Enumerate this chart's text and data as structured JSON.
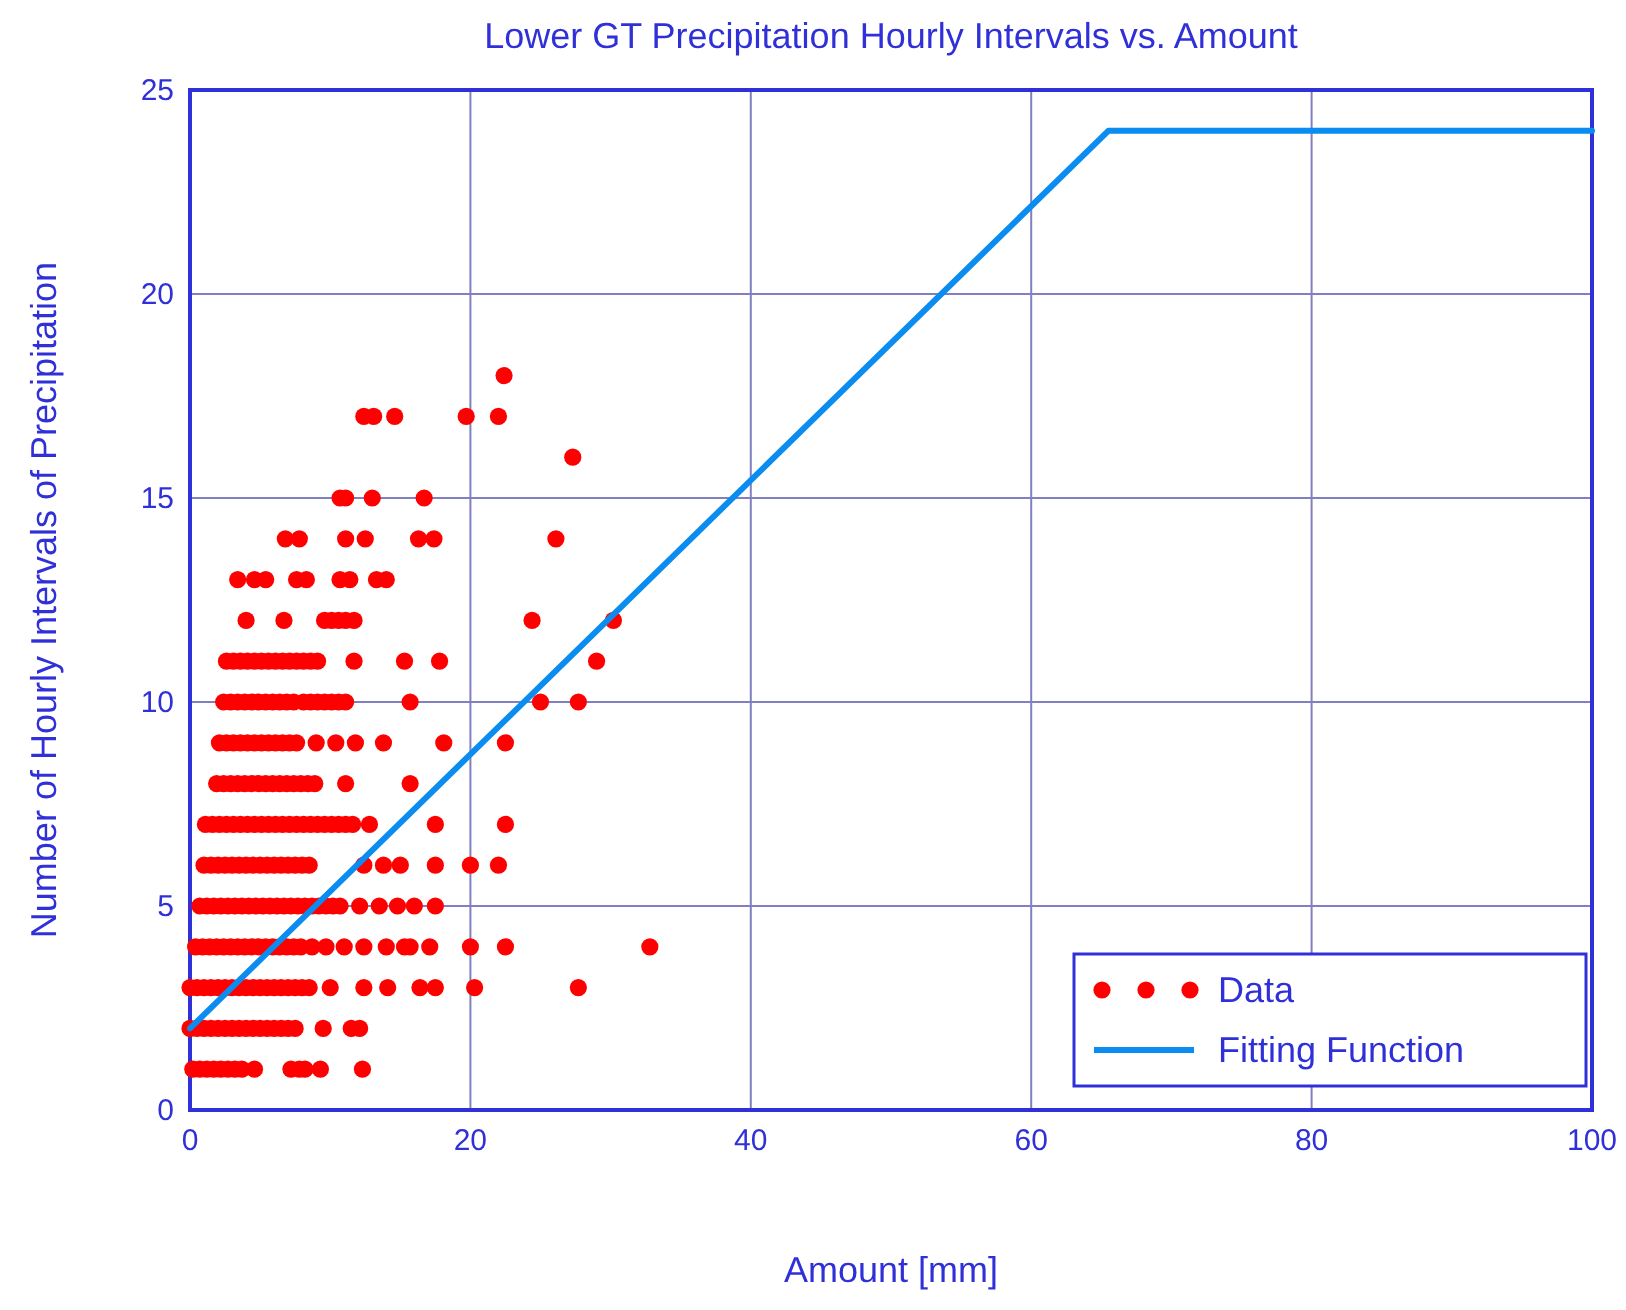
{
  "chart_data": {
    "type": "scatter",
    "title": "Lower GT Precipitation Hourly Intervals vs. Amount",
    "xlabel": "Amount [mm]",
    "ylabel": "Number of Hourly Intervals of Precipitation",
    "xlim": [
      0,
      100
    ],
    "ylim": [
      0,
      25
    ],
    "xticks": [
      0,
      20,
      40,
      60,
      80,
      100
    ],
    "yticks": [
      0,
      5,
      10,
      15,
      20,
      25
    ],
    "grid": true,
    "legend": "bottom right",
    "series": [
      {
        "name": "Data",
        "marker": "circle",
        "color": "#ff0000",
        "x": [
          0.2,
          0.7,
          1.2,
          1.7,
          2.2,
          2.7,
          3.2,
          3.7,
          4.6,
          7.2,
          7.8,
          8.2,
          9.3,
          12.3,
          0,
          0.5,
          1,
          1.5,
          2,
          2.5,
          3,
          3.5,
          4,
          4.5,
          5,
          5.5,
          6,
          6.5,
          7,
          7.5,
          9.5,
          11.5,
          12.1,
          0,
          0.5,
          1,
          1.5,
          2,
          2.5,
          3,
          3.5,
          4,
          4.5,
          5,
          5.5,
          6,
          6.5,
          7,
          7.5,
          8,
          8.5,
          10,
          12.4,
          14.1,
          16.4,
          17.5,
          20.3,
          27.7,
          0.4,
          0.9,
          1.4,
          1.9,
          2.4,
          2.9,
          3.4,
          3.9,
          4.4,
          4.9,
          5.4,
          5.9,
          6.4,
          6.9,
          7.4,
          7.9,
          8.7,
          9.7,
          11,
          12.4,
          14,
          15.3,
          15.7,
          17.1,
          20,
          22.5,
          32.8,
          0.7,
          1.2,
          1.7,
          2.2,
          2.7,
          3.2,
          3.7,
          4.2,
          4.7,
          5.2,
          5.7,
          6.2,
          6.7,
          7.2,
          7.7,
          8.2,
          8.7,
          9.2,
          9.7,
          10.2,
          10.7,
          12.1,
          13.5,
          14.8,
          16,
          17.5,
          1,
          1.5,
          2,
          2.5,
          3,
          3.5,
          4,
          4.5,
          5,
          5.5,
          6,
          6.5,
          7,
          7.5,
          8,
          8.5,
          12.4,
          13.8,
          15,
          17.5,
          20,
          22,
          1.1,
          1.6,
          2.1,
          2.6,
          3.1,
          3.6,
          4.1,
          4.6,
          5.1,
          5.6,
          6.1,
          6.6,
          7.1,
          7.6,
          8.1,
          8.6,
          9.1,
          9.6,
          10.1,
          10.6,
          11.1,
          11.6,
          12.8,
          17.5,
          22.5,
          1.9,
          2.4,
          2.9,
          3.4,
          3.9,
          4.4,
          4.9,
          5.4,
          5.9,
          6.4,
          6.9,
          7.4,
          7.9,
          8.4,
          8.9,
          11.1,
          15.7,
          2.1,
          2.6,
          3.1,
          3.6,
          4.1,
          4.6,
          5.1,
          5.6,
          6.1,
          6.6,
          7.1,
          7.6,
          9,
          10.4,
          11.8,
          13.8,
          18.1,
          22.5,
          2.4,
          2.9,
          3.4,
          3.9,
          4.4,
          4.9,
          5.4,
          5.9,
          6.4,
          6.9,
          7.4,
          8.1,
          8.6,
          9.1,
          9.6,
          10.1,
          10.6,
          11.1,
          15.7,
          25,
          27.7,
          2.6,
          3.1,
          3.6,
          4.1,
          4.6,
          5.1,
          5.6,
          6.1,
          6.6,
          7.1,
          7.6,
          8.1,
          8.6,
          9.1,
          11.7,
          15.3,
          17.8,
          29,
          4,
          6.7,
          9.6,
          10.1,
          10.6,
          11.1,
          11.7,
          24.4,
          30.2,
          3.4,
          4.6,
          5.4,
          7.6,
          8.3,
          10.7,
          11.4,
          13.3,
          14,
          6.8,
          7.8,
          11.1,
          12.5,
          16.3,
          17.4,
          26.1,
          10.7,
          11.1,
          13,
          16.7,
          27.3,
          12.4,
          13.1,
          14.6,
          19.7,
          22,
          22.4
        ],
        "values": [
          1,
          1,
          1,
          1,
          1,
          1,
          1,
          1,
          1,
          1,
          1,
          1,
          1,
          1,
          2,
          2,
          2,
          2,
          2,
          2,
          2,
          2,
          2,
          2,
          2,
          2,
          2,
          2,
          2,
          2,
          2,
          2,
          2,
          3,
          3,
          3,
          3,
          3,
          3,
          3,
          3,
          3,
          3,
          3,
          3,
          3,
          3,
          3,
          3,
          3,
          3,
          3,
          3,
          3,
          3,
          3,
          3,
          3,
          4,
          4,
          4,
          4,
          4,
          4,
          4,
          4,
          4,
          4,
          4,
          4,
          4,
          4,
          4,
          4,
          4,
          4,
          4,
          4,
          4,
          4,
          4,
          4,
          4,
          4,
          4,
          5,
          5,
          5,
          5,
          5,
          5,
          5,
          5,
          5,
          5,
          5,
          5,
          5,
          5,
          5,
          5,
          5,
          5,
          5,
          5,
          5,
          5,
          5,
          5,
          5,
          5,
          6,
          6,
          6,
          6,
          6,
          6,
          6,
          6,
          6,
          6,
          6,
          6,
          6,
          6,
          6,
          6,
          6,
          6,
          6,
          6,
          6,
          6,
          7,
          7,
          7,
          7,
          7,
          7,
          7,
          7,
          7,
          7,
          7,
          7,
          7,
          7,
          7,
          7,
          7,
          7,
          7,
          7,
          7,
          7,
          7,
          7,
          7,
          8,
          8,
          8,
          8,
          8,
          8,
          8,
          8,
          8,
          8,
          8,
          8,
          8,
          8,
          8,
          8,
          8,
          9,
          9,
          9,
          9,
          9,
          9,
          9,
          9,
          9,
          9,
          9,
          9,
          9,
          9,
          9,
          9,
          9,
          9,
          10,
          10,
          10,
          10,
          10,
          10,
          10,
          10,
          10,
          10,
          10,
          10,
          10,
          10,
          10,
          10,
          10,
          10,
          10,
          10,
          10,
          11,
          11,
          11,
          11,
          11,
          11,
          11,
          11,
          11,
          11,
          11,
          11,
          11,
          11,
          11,
          11,
          11,
          11,
          12,
          12,
          12,
          12,
          12,
          12,
          12,
          12,
          12,
          13,
          13,
          13,
          13,
          13,
          13,
          13,
          13,
          13,
          14,
          14,
          14,
          14,
          14,
          14,
          14,
          15,
          15,
          15,
          15,
          16,
          17,
          17,
          17,
          17,
          17,
          18
        ]
      },
      {
        "name": "Fitting Function",
        "type": "line",
        "line_style": "solid",
        "color": "#0a8cf0",
        "x": [
          0,
          65.5,
          100
        ],
        "values": [
          2,
          24,
          24
        ]
      }
    ]
  }
}
